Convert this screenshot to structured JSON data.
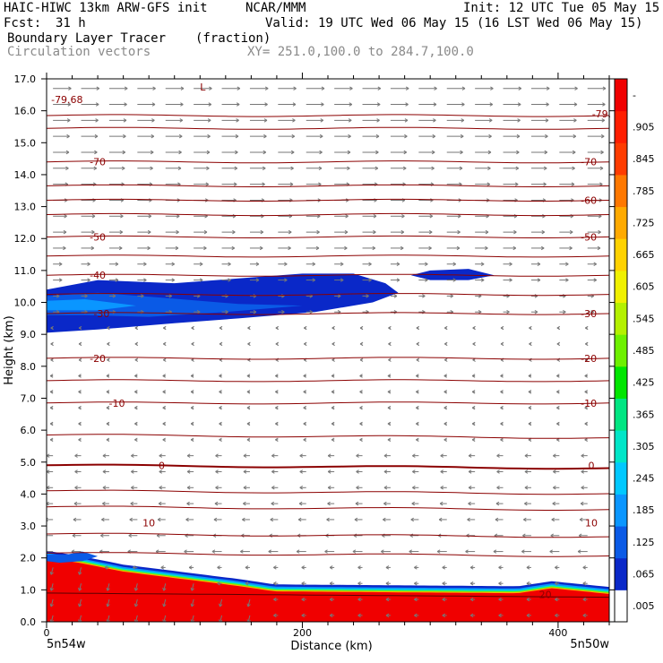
{
  "header": {
    "model": "HAIC-HIWC 13km ARW-GFS init",
    "org": "NCAR/MMM",
    "init": "Init: 12 UTC Tue 05 May 15",
    "fcst_label": "Fcst:",
    "fcst_value": "31 h",
    "valid": "Valid: 19 UTC Wed 06 May 15 (16 LST Wed 06 May 15)",
    "field": "Boundary Layer Tracer",
    "field_units": "(fraction)",
    "vectors": "Circulation vectors",
    "xsec": "XY= 251.0,100.0 to 284.7,100.0"
  },
  "chart_data": {
    "type": "cross-section",
    "xlabel": "Distance (km)",
    "ylabel": "Height (km)",
    "xlim": [
      0,
      440
    ],
    "ylim": [
      0,
      17
    ],
    "x_ticks": [
      "0",
      "200",
      "400"
    ],
    "x_tick_values": [
      0,
      200,
      400
    ],
    "x_minor_step": 20,
    "y_ticks": [
      "0.0",
      "1.0",
      "2.0",
      "3.0",
      "4.0",
      "5.0",
      "6.0",
      "7.0",
      "8.0",
      "9.0",
      "10.0",
      "11.0",
      "12.0",
      "13.0",
      "14.0",
      "15.0",
      "16.0",
      "17.0"
    ],
    "endpoints": [
      "5n54w",
      "5n50w"
    ],
    "colorbar": {
      "labels": [
        ".005",
        ".065",
        ".125",
        ".185",
        ".245",
        ".305",
        ".365",
        ".425",
        ".485",
        ".545",
        ".605",
        ".665",
        ".725",
        ".785",
        ".845",
        ".905",
        "-"
      ],
      "colors": [
        "#ffffff",
        "#0a28c8",
        "#0a5ae6",
        "#0a96ff",
        "#00c8ff",
        "#00e6c8",
        "#00e682",
        "#00e600",
        "#6ef000",
        "#b4f000",
        "#f0f000",
        "#ffd200",
        "#ffaa00",
        "#ff7800",
        "#ff3c00",
        "#ff1e00",
        "#f00000"
      ]
    },
    "temperature_contours": [
      {
        "label": "0",
        "height": 4.9
      },
      {
        "label": "-10",
        "height": 6.85
      },
      {
        "label": "-20",
        "height": 8.25
      },
      {
        "label": "-30",
        "height": 9.65
      },
      {
        "label": "-40",
        "height": 10.85
      },
      {
        "label": "-50",
        "height": 12.05
      },
      {
        "label": "-60",
        "height": 13.2
      },
      {
        "label": "-70",
        "height": 14.4
      }
    ],
    "contour_labels_left": [
      {
        "text": "-79.68",
        "x": 16,
        "y": 16.35
      },
      {
        "text": "-70",
        "x": 40,
        "y": 14.4
      },
      {
        "text": "-50",
        "x": 40,
        "y": 12.05
      },
      {
        "text": "-40",
        "x": 40,
        "y": 10.85
      },
      {
        "text": "-30",
        "x": 43,
        "y": 9.65
      },
      {
        "text": "-20",
        "x": 40,
        "y": 8.25
      },
      {
        "text": "-10",
        "x": 55,
        "y": 6.85
      },
      {
        "text": "0",
        "x": 90,
        "y": 4.9
      },
      {
        "text": "10",
        "x": 80,
        "y": 3.1
      }
    ],
    "contour_labels_right": [
      {
        "text": "-79.",
        "x": 434,
        "y": 15.9
      },
      {
        "text": "-70",
        "x": 424,
        "y": 14.4
      },
      {
        "text": "-60",
        "x": 424,
        "y": 13.2
      },
      {
        "text": "-50",
        "x": 424,
        "y": 12.05
      },
      {
        "text": "-30",
        "x": 424,
        "y": 9.65
      },
      {
        "text": "-20",
        "x": 424,
        "y": 8.25
      },
      {
        "text": "-10",
        "x": 424,
        "y": 6.85
      },
      {
        "text": "0",
        "x": 426,
        "y": 4.9
      },
      {
        "text": "10",
        "x": 426,
        "y": 3.1
      },
      {
        "text": "20",
        "x": 390,
        "y": 0.85
      }
    ],
    "low_marker": {
      "text": "L",
      "x": 120,
      "y": 16.75
    }
  }
}
